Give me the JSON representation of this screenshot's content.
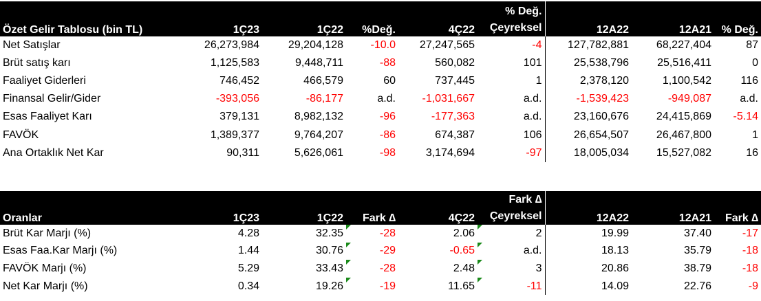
{
  "income": {
    "headers": [
      "Özet Gelir Tablosu (bin TL)",
      "1Ç23",
      "1Ç22",
      "%Değ.",
      "4Ç22",
      "% Değ.\nÇeyreksel",
      "12A22",
      "12A21",
      "% Değ."
    ],
    "header_ceyrek_top": "% Değ.",
    "header_ceyrek_bottom": "Çeyreksel",
    "rows": [
      [
        "Net Satışlar",
        "26,273,984",
        "29,204,128",
        "-10.0",
        "27,247,565",
        "-4",
        "127,782,881",
        "68,227,404",
        "87"
      ],
      [
        "Brüt satış karı",
        "1,125,583",
        "9,448,711",
        "-88",
        "560,082",
        "101",
        "25,538,796",
        "25,516,411",
        "0"
      ],
      [
        "Faaliyet Giderleri",
        "746,452",
        "466,579",
        "60",
        "737,445",
        "1",
        "2,378,120",
        "1,100,542",
        "116"
      ],
      [
        "Finansal Gelir/Gider",
        "-393,056",
        "-86,177",
        "a.d.",
        "-1,031,667",
        "a.d.",
        "-1,539,423",
        "-949,087",
        "a.d."
      ],
      [
        "Esas Faaliyet Karı",
        "379,131",
        "8,982,132",
        "-96",
        "-177,363",
        "a.d.",
        "23,160,676",
        "24,415,869",
        "-5.14"
      ],
      [
        "FAVÖK",
        "1,389,377",
        "9,764,207",
        "-86",
        "674,387",
        "106",
        "26,654,507",
        "26,467,800",
        "1"
      ],
      [
        "Ana Ortaklık Net Kar",
        "90,311",
        "5,626,061",
        "-98",
        "3,174,694",
        "-97",
        "18,005,034",
        "15,527,082",
        "16"
      ]
    ]
  },
  "ratios": {
    "headers": [
      "Oranlar",
      "1Ç23",
      "1Ç22",
      "Fark ∆",
      "4Ç22",
      "Fark ∆\nÇeyreksel",
      "12A22",
      "12A21",
      "Fark ∆"
    ],
    "header_ceyrek_top": "Fark ∆",
    "header_ceyrek_bottom": "Çeyreksel",
    "rows": [
      [
        "Brüt Kar Marjı (%)",
        "4.28",
        "32.35",
        "-28",
        "2.06",
        "2",
        "19.99",
        "37.40",
        "-17"
      ],
      [
        "Esas Faa.Kar Marjı (%)",
        "1.44",
        "30.76",
        "-29",
        "-0.65",
        "a.d.",
        "18.13",
        "35.79",
        "-18"
      ],
      [
        "FAVÖK Marjı (%)",
        "5.29",
        "33.43",
        "-28",
        "2.48",
        "3",
        "20.86",
        "38.79",
        "-18"
      ],
      [
        "Net Kar Marjı (%)",
        "0.34",
        "19.26",
        "-19",
        "11.65",
        "-11",
        "14.09",
        "22.76",
        "-9"
      ]
    ]
  },
  "colors": {
    "header_bg": "#000000",
    "header_text": "#ffffff",
    "negative": "#ff0000",
    "marker": "#1a8a1a"
  }
}
